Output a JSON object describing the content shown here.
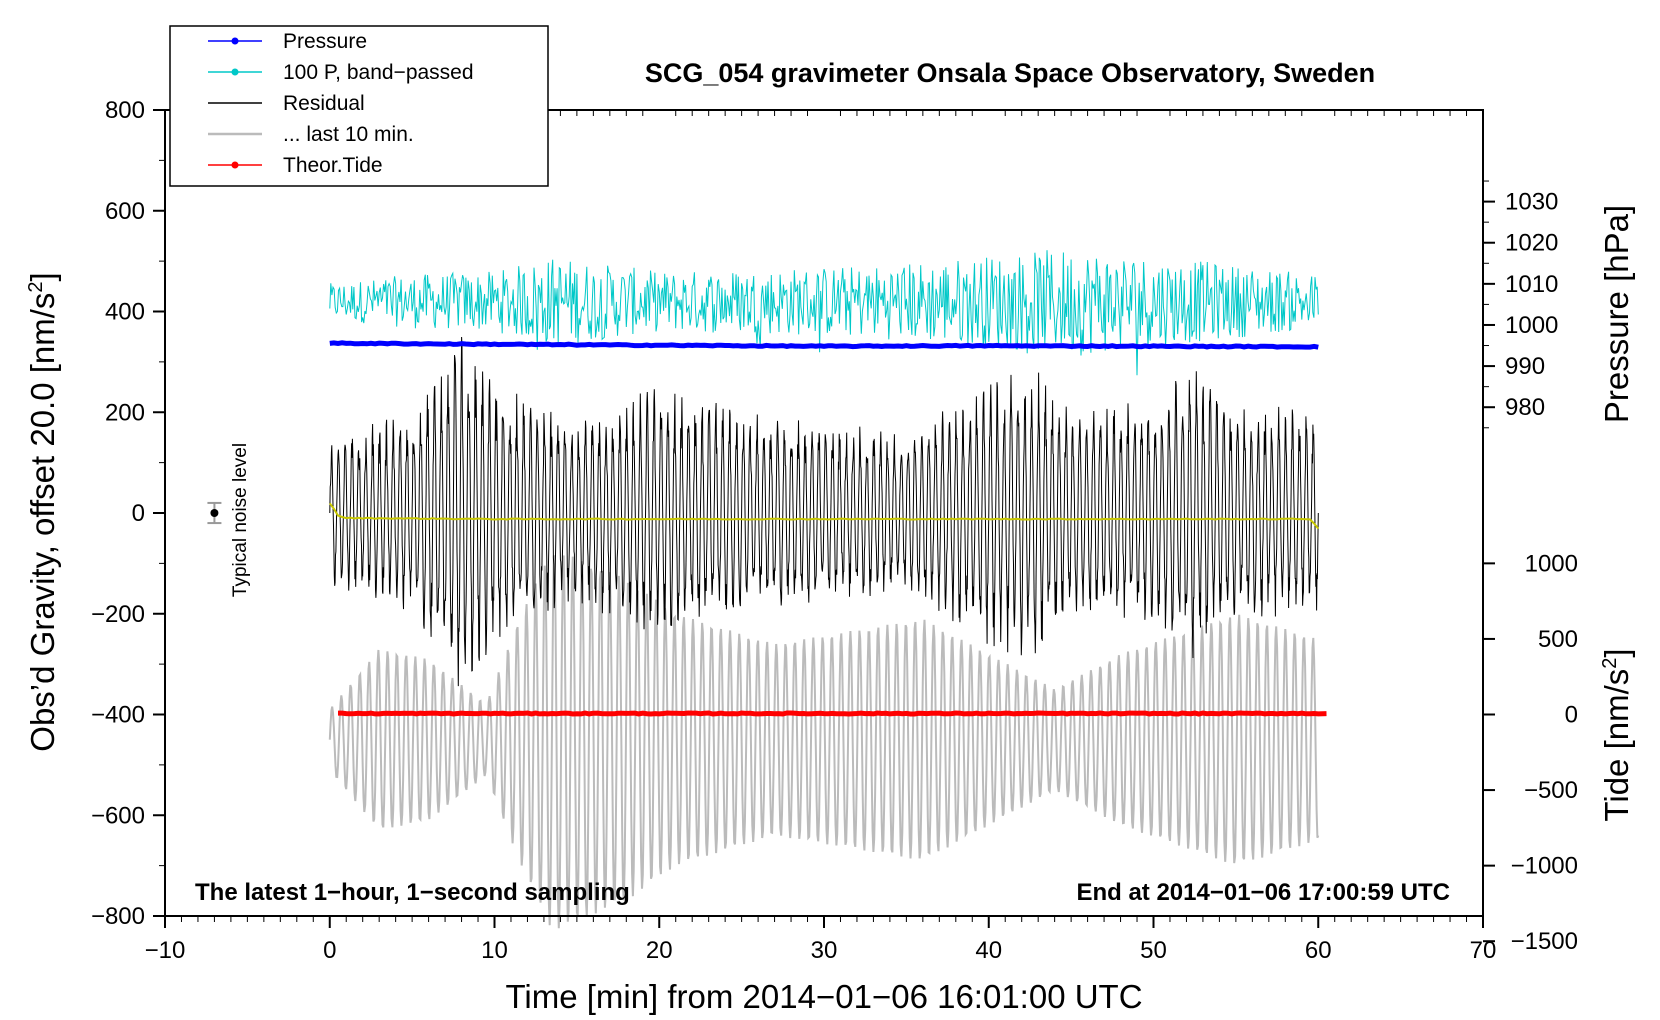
{
  "chart_data": {
    "type": "line",
    "title": "SCG_054 gravimeter Onsala Space Observatory, Sweden",
    "xlabel": "Time [min] from 2014−01−06 16:01:00 UTC",
    "ylabel": "Obs’d Gravity, offset 20.0 [nm/s",
    "ylabel_sup": "2",
    "ylabel_close": "]",
    "y2label": "Pressure [hPa]",
    "y3label": "Tide [nm/s",
    "y3label_sup": "2",
    "y3label_close": "]",
    "xlim": [
      -10,
      70
    ],
    "ylim": [
      -800,
      800
    ],
    "x_ticks": [
      -10,
      0,
      10,
      20,
      30,
      40,
      50,
      60,
      70
    ],
    "x_tick_labels": [
      "−10",
      "0",
      "10",
      "20",
      "30",
      "40",
      "50",
      "60",
      "70"
    ],
    "y_ticks": [
      -800,
      -600,
      -400,
      -200,
      0,
      200,
      400,
      600,
      800
    ],
    "y_tick_labels": [
      "−800",
      "−600",
      "−400",
      "−200",
      "0",
      "200",
      "400",
      "600",
      "800"
    ],
    "pressure_axis": {
      "ticks": [
        980,
        990,
        1000,
        1010,
        1020,
        1030
      ],
      "tick_labels": [
        "980",
        "990",
        "1000",
        "1010",
        "1020",
        "1030"
      ],
      "y_at_980": 210,
      "hpa_per_unit": 0.1225
    },
    "tide_axis": {
      "ticks": [
        -1500,
        -1000,
        -500,
        0,
        500,
        1000
      ],
      "tick_labels": [
        "−1500",
        "−1000",
        "−500",
        "0",
        "500",
        "1000"
      ],
      "y_at_0": -400,
      "tide_per_unit": 3.333
    },
    "legend": {
      "position": "top-left",
      "entries": [
        {
          "label": "Pressure",
          "color": "#0000ff",
          "marker": true
        },
        {
          "label": "100 P, band−passed",
          "color": "#00c8c8",
          "marker": true
        },
        {
          "label": "Residual",
          "color": "#000000",
          "marker": false
        },
        {
          "label": "... last 10 min.",
          "color": "#bbbbbb",
          "marker": false
        },
        {
          "label": "Theor.Tide",
          "color": "#ff0000",
          "marker": true
        }
      ]
    },
    "annotations": {
      "bottom_left": "The latest 1−hour, 1−second sampling",
      "bottom_right": "End at 2014−01−06 17:00:59 UTC",
      "noise_label": "Typical noise level"
    },
    "noise_marker": {
      "x": -7,
      "y": 0,
      "err": 20
    },
    "series": [
      {
        "name": "Pressure",
        "color": "#0000ff",
        "kind": "flat",
        "x": [
          0,
          10,
          20,
          30,
          40,
          50,
          60
        ],
        "y": [
          337,
          335,
          333,
          331,
          332,
          331,
          330
        ]
      },
      {
        "name": "100 P, band−passed",
        "color": "#00c8c8",
        "kind": "noise",
        "x_range": [
          0,
          60
        ],
        "center": 420,
        "envelope_x": [
          0,
          5,
          10,
          13.5,
          20,
          32.6,
          45.5,
          60
        ],
        "envelope_y": [
          60,
          90,
          100,
          150,
          100,
          120,
          180,
          90
        ]
      },
      {
        "name": "Residual",
        "color": "#000000",
        "kind": "oscillation",
        "x_range": [
          0,
          60
        ],
        "center": 0,
        "envelope_x": [
          0,
          2,
          5,
          8,
          10,
          15,
          20,
          25,
          30,
          35,
          40,
          43,
          45,
          50,
          52,
          55,
          60
        ],
        "envelope_y": [
          150,
          170,
          210,
          370,
          260,
          180,
          260,
          210,
          180,
          170,
          270,
          290,
          210,
          230,
          300,
          220,
          210
        ]
      },
      {
        "name": "Residual (yellow smoothed)",
        "color": "#c8c800",
        "kind": "flat",
        "x": [
          0,
          0.5,
          1,
          10,
          20,
          30,
          40,
          50,
          59.5,
          60
        ],
        "y": [
          20,
          -5,
          -10,
          -12,
          -12,
          -12,
          -12,
          -12,
          -12,
          -30
        ]
      },
      {
        "name": "... last 10 min.",
        "color": "#bbbbbb",
        "kind": "oscillation",
        "x_range": [
          0,
          60
        ],
        "center": -450,
        "envelope_x": [
          0,
          3,
          6,
          9.5,
          11.5,
          13.5,
          18,
          21,
          27,
          36,
          40,
          44,
          48,
          55,
          60
        ],
        "envelope_y": [
          60,
          180,
          160,
          70,
          240,
          380,
          320,
          250,
          190,
          240,
          170,
          100,
          170,
          250,
          200
        ]
      },
      {
        "name": "Theor.Tide",
        "color": "#ff0000",
        "kind": "flat",
        "x": [
          0.5,
          60.5
        ],
        "y": [
          -398,
          -398
        ]
      }
    ]
  }
}
